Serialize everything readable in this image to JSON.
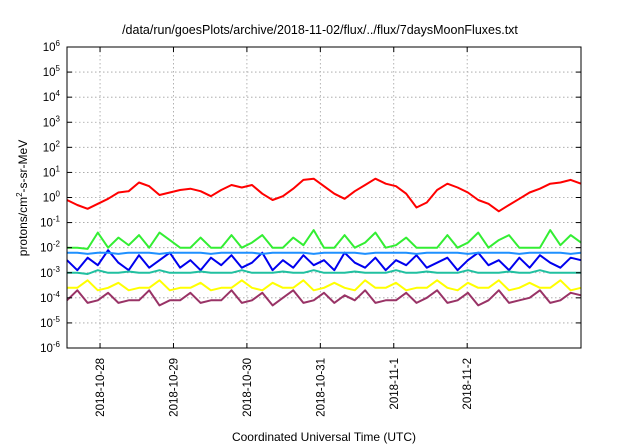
{
  "chart_data": {
    "type": "line",
    "title": "/data/run/goesPlots/archive/2018-11-02/flux/../flux/7daysMoonFluxes.txt",
    "xlabel": "Coordinated Universal Time (UTC)",
    "ylabel": "protons/cm2-s-sr-MeV",
    "ylabel_parts": {
      "before": "protons/cm",
      "sup": "2",
      "after": "-s-sr-MeV"
    },
    "log_y": true,
    "grid": true,
    "legend": "none",
    "xlim": [
      0.55,
      7.55
    ],
    "ylim": [
      -6,
      6
    ],
    "y_ticks": [
      {
        "base": "10",
        "exp": "-6",
        "value": -6
      },
      {
        "base": "10",
        "exp": "-5",
        "value": -5
      },
      {
        "base": "10",
        "exp": "-4",
        "value": -4
      },
      {
        "base": "10",
        "exp": "-3",
        "value": -3
      },
      {
        "base": "10",
        "exp": "-2",
        "value": -2
      },
      {
        "base": "10",
        "exp": "-1",
        "value": -1
      },
      {
        "base": "10",
        "exp": "0",
        "value": 0
      },
      {
        "base": "10",
        "exp": "1",
        "value": 1
      },
      {
        "base": "10",
        "exp": "2",
        "value": 2
      },
      {
        "base": "10",
        "exp": "3",
        "value": 3
      },
      {
        "base": "10",
        "exp": "4",
        "value": 4
      },
      {
        "base": "10",
        "exp": "5",
        "value": 5
      },
      {
        "base": "10",
        "exp": "6",
        "value": 6
      }
    ],
    "x_ticks": [
      {
        "label": "2018-10-28",
        "value": 1
      },
      {
        "label": "2018-10-29",
        "value": 2
      },
      {
        "label": "2018-10-30",
        "value": 3
      },
      {
        "label": "2018-10-31",
        "value": 4
      },
      {
        "label": "2018-11-1",
        "value": 5
      },
      {
        "label": "2018-11-2",
        "value": 6
      }
    ],
    "series": [
      {
        "color": "#ff0000",
        "x": [
          0.55,
          0.69,
          0.83,
          0.97,
          1.11,
          1.25,
          1.39,
          1.53,
          1.67,
          1.81,
          1.95,
          2.09,
          2.23,
          2.37,
          2.51,
          2.65,
          2.79,
          2.93,
          3.07,
          3.21,
          3.35,
          3.49,
          3.63,
          3.77,
          3.91,
          4.05,
          4.19,
          4.33,
          4.47,
          4.61,
          4.75,
          4.89,
          5.03,
          5.17,
          5.31,
          5.45,
          5.59,
          5.73,
          5.87,
          6.01,
          6.15,
          6.29,
          6.43,
          6.57,
          6.71,
          6.85,
          6.99,
          7.13,
          7.27,
          7.41,
          7.55
        ],
        "y": [
          -0.1,
          -0.3,
          -0.45,
          -0.25,
          -0.05,
          0.2,
          0.25,
          0.6,
          0.45,
          0.1,
          0.2,
          0.3,
          0.35,
          0.25,
          0.05,
          0.3,
          0.5,
          0.4,
          0.5,
          0.15,
          -0.1,
          0.05,
          0.35,
          0.7,
          0.75,
          0.45,
          0.15,
          -0.05,
          0.25,
          0.5,
          0.75,
          0.55,
          0.45,
          0.15,
          -0.4,
          -0.2,
          0.3,
          0.55,
          0.4,
          0.2,
          -0.1,
          -0.25,
          -0.55,
          -0.3,
          -0.05,
          0.2,
          0.35,
          0.55,
          0.6,
          0.7,
          0.55
        ],
        "values_unit": "log10(flux)"
      },
      {
        "color": "#33ee33",
        "x": [
          0.55,
          0.69,
          0.83,
          0.97,
          1.11,
          1.25,
          1.39,
          1.53,
          1.67,
          1.81,
          1.95,
          2.09,
          2.23,
          2.37,
          2.51,
          2.65,
          2.79,
          2.93,
          3.07,
          3.21,
          3.35,
          3.49,
          3.63,
          3.77,
          3.91,
          4.05,
          4.19,
          4.33,
          4.47,
          4.61,
          4.75,
          4.89,
          5.03,
          5.17,
          5.31,
          5.45,
          5.59,
          5.73,
          5.87,
          6.01,
          6.15,
          6.29,
          6.43,
          6.57,
          6.71,
          6.85,
          6.99,
          7.13,
          7.27,
          7.41,
          7.55
        ],
        "y": [
          -2,
          -2,
          -2.05,
          -1.4,
          -2,
          -1.6,
          -1.9,
          -1.5,
          -2,
          -1.4,
          -1.7,
          -2,
          -2,
          -1.6,
          -2,
          -2,
          -1.5,
          -2,
          -1.8,
          -1.5,
          -2,
          -2,
          -1.6,
          -1.9,
          -1.3,
          -2,
          -2,
          -1.5,
          -2,
          -1.8,
          -1.4,
          -2,
          -1.9,
          -1.6,
          -2,
          -2,
          -2,
          -1.5,
          -2,
          -1.8,
          -1.4,
          -2,
          -1.7,
          -1.5,
          -2,
          -2,
          -2,
          -1.3,
          -1.9,
          -1.5,
          -1.8
        ],
        "values_unit": "log10(flux)"
      },
      {
        "color": "#0000ee",
        "x": [
          0.55,
          0.69,
          0.83,
          0.97,
          1.11,
          1.25,
          1.39,
          1.53,
          1.67,
          1.81,
          1.95,
          2.09,
          2.23,
          2.37,
          2.51,
          2.65,
          2.79,
          2.93,
          3.07,
          3.21,
          3.35,
          3.49,
          3.63,
          3.77,
          3.91,
          4.05,
          4.19,
          4.33,
          4.47,
          4.61,
          4.75,
          4.89,
          5.03,
          5.17,
          5.31,
          5.45,
          5.59,
          5.73,
          5.87,
          6.01,
          6.15,
          6.29,
          6.43,
          6.57,
          6.71,
          6.85,
          6.99,
          7.13,
          7.27,
          7.41,
          7.55
        ],
        "y": [
          -2.5,
          -2.9,
          -2.4,
          -2.7,
          -2.1,
          -2.6,
          -2.9,
          -2.3,
          -2.8,
          -2.5,
          -2.2,
          -2.8,
          -2.5,
          -2.9,
          -2.4,
          -2.7,
          -2.3,
          -2.8,
          -2.6,
          -2.2,
          -2.9,
          -2.5,
          -2.8,
          -2.3,
          -2.7,
          -2.5,
          -2.9,
          -2.2,
          -2.6,
          -2.8,
          -2.4,
          -2.9,
          -2.5,
          -2.7,
          -2.3,
          -2.8,
          -2.6,
          -2.4,
          -2.9,
          -2.5,
          -2.2,
          -2.7,
          -2.5,
          -2.9,
          -2.4,
          -2.8,
          -2.3,
          -2.6,
          -2.8,
          -2.4,
          -2.5
        ],
        "values_unit": "log10(flux)"
      },
      {
        "color": "#1e90ff",
        "x": [
          0.55,
          0.69,
          0.83,
          0.97,
          1.11,
          1.25,
          1.39,
          1.53,
          1.67,
          1.81,
          1.95,
          2.09,
          2.23,
          2.37,
          2.51,
          2.65,
          2.79,
          2.93,
          3.07,
          3.21,
          3.35,
          3.49,
          3.63,
          3.77,
          3.91,
          4.05,
          4.19,
          4.33,
          4.47,
          4.61,
          4.75,
          4.89,
          5.03,
          5.17,
          5.31,
          5.45,
          5.59,
          5.73,
          5.87,
          6.01,
          6.15,
          6.29,
          6.43,
          6.57,
          6.71,
          6.85,
          6.99,
          7.13,
          7.27,
          7.41,
          7.55
        ],
        "y": [
          -2.2,
          -2.2,
          -2.25,
          -2.2,
          -2.2,
          -2.25,
          -2.2,
          -2.2,
          -2.2,
          -2.25,
          -2.2,
          -2.2,
          -2.2,
          -2.2,
          -2.25,
          -2.2,
          -2.2,
          -2.2,
          -2.2,
          -2.25,
          -2.2,
          -2.2,
          -2.2,
          -2.2,
          -2.25,
          -2.2,
          -2.2,
          -2.2,
          -2.2,
          -2.25,
          -2.2,
          -2.2,
          -2.2,
          -2.2,
          -2.25,
          -2.2,
          -2.2,
          -2.2,
          -2.2,
          -2.25,
          -2.2,
          -2.2,
          -2.2,
          -2.2,
          -2.25,
          -2.2,
          -2.2,
          -2.2,
          -2.2,
          -2.25,
          -2.2
        ],
        "values_unit": "log10(flux)"
      },
      {
        "color": "#20c0a0",
        "x": [
          0.55,
          0.69,
          0.83,
          0.97,
          1.11,
          1.25,
          1.39,
          1.53,
          1.67,
          1.81,
          1.95,
          2.09,
          2.23,
          2.37,
          2.51,
          2.65,
          2.79,
          2.93,
          3.07,
          3.21,
          3.35,
          3.49,
          3.63,
          3.77,
          3.91,
          4.05,
          4.19,
          4.33,
          4.47,
          4.61,
          4.75,
          4.89,
          5.03,
          5.17,
          5.31,
          5.45,
          5.59,
          5.73,
          5.87,
          6.01,
          6.15,
          6.29,
          6.43,
          6.57,
          6.71,
          6.85,
          6.99,
          7.13,
          7.27,
          7.41,
          7.55
        ],
        "y": [
          -3,
          -3,
          -3.05,
          -2.9,
          -3,
          -3,
          -2.95,
          -3,
          -3,
          -2.9,
          -3,
          -3,
          -3,
          -2.95,
          -3,
          -3,
          -3,
          -2.9,
          -3,
          -3,
          -3,
          -2.95,
          -3,
          -3,
          -2.9,
          -3,
          -3,
          -3,
          -2.95,
          -3,
          -3,
          -3,
          -2.9,
          -3,
          -3,
          -2.95,
          -3,
          -3,
          -3,
          -2.9,
          -3,
          -3,
          -3,
          -2.95,
          -3,
          -3,
          -2.9,
          -3,
          -3,
          -3,
          -3
        ],
        "values_unit": "log10(flux)"
      },
      {
        "color": "#ffff00",
        "x": [
          0.55,
          0.69,
          0.83,
          0.97,
          1.11,
          1.25,
          1.39,
          1.53,
          1.67,
          1.81,
          1.95,
          2.09,
          2.23,
          2.37,
          2.51,
          2.65,
          2.79,
          2.93,
          3.07,
          3.21,
          3.35,
          3.49,
          3.63,
          3.77,
          3.91,
          4.05,
          4.19,
          4.33,
          4.47,
          4.61,
          4.75,
          4.89,
          5.03,
          5.17,
          5.31,
          5.45,
          5.59,
          5.73,
          5.87,
          6.01,
          6.15,
          6.29,
          6.43,
          6.57,
          6.71,
          6.85,
          6.99,
          7.13,
          7.27,
          7.41,
          7.55
        ],
        "y": [
          -3.6,
          -3.6,
          -3.3,
          -3.7,
          -3.6,
          -3.4,
          -3.7,
          -3.6,
          -3.6,
          -3.3,
          -3.7,
          -3.6,
          -3.6,
          -3.4,
          -3.7,
          -3.6,
          -3.6,
          -3.3,
          -3.6,
          -3.7,
          -3.4,
          -3.6,
          -3.6,
          -3.3,
          -3.7,
          -3.6,
          -3.4,
          -3.6,
          -3.7,
          -3.3,
          -3.6,
          -3.6,
          -3.4,
          -3.7,
          -3.6,
          -3.6,
          -3.3,
          -3.6,
          -3.7,
          -3.4,
          -3.6,
          -3.6,
          -3.3,
          -3.7,
          -3.6,
          -3.4,
          -3.6,
          -3.6,
          -3.3,
          -3.7,
          -3.6
        ],
        "values_unit": "log10(flux)"
      },
      {
        "color": "#993366",
        "x": [
          0.55,
          0.69,
          0.83,
          0.97,
          1.11,
          1.25,
          1.39,
          1.53,
          1.67,
          1.81,
          1.95,
          2.09,
          2.23,
          2.37,
          2.51,
          2.65,
          2.79,
          2.93,
          3.07,
          3.21,
          3.35,
          3.49,
          3.63,
          3.77,
          3.91,
          4.05,
          4.19,
          4.33,
          4.47,
          4.61,
          4.75,
          4.89,
          5.03,
          5.17,
          5.31,
          5.45,
          5.59,
          5.73,
          5.87,
          6.01,
          6.15,
          6.29,
          6.43,
          6.57,
          6.71,
          6.85,
          6.99,
          7.13,
          7.27,
          7.41,
          7.55
        ],
        "y": [
          -4.1,
          -3.7,
          -4.2,
          -4.1,
          -3.8,
          -4.2,
          -4.1,
          -4.1,
          -3.7,
          -4.3,
          -4.1,
          -4.1,
          -3.8,
          -4.2,
          -4.1,
          -4.1,
          -3.7,
          -4.2,
          -4.1,
          -3.8,
          -4.3,
          -4.0,
          -3.7,
          -4.2,
          -4.1,
          -3.8,
          -4.2,
          -3.9,
          -4.1,
          -3.7,
          -4.2,
          -4.1,
          -4.1,
          -3.8,
          -4.2,
          -4.0,
          -3.7,
          -4.2,
          -4.1,
          -3.8,
          -4.3,
          -4.1,
          -3.7,
          -4.2,
          -4.1,
          -4.0,
          -3.7,
          -4.2,
          -4.1,
          -3.8,
          -3.9
        ],
        "values_unit": "log10(flux)"
      }
    ]
  }
}
